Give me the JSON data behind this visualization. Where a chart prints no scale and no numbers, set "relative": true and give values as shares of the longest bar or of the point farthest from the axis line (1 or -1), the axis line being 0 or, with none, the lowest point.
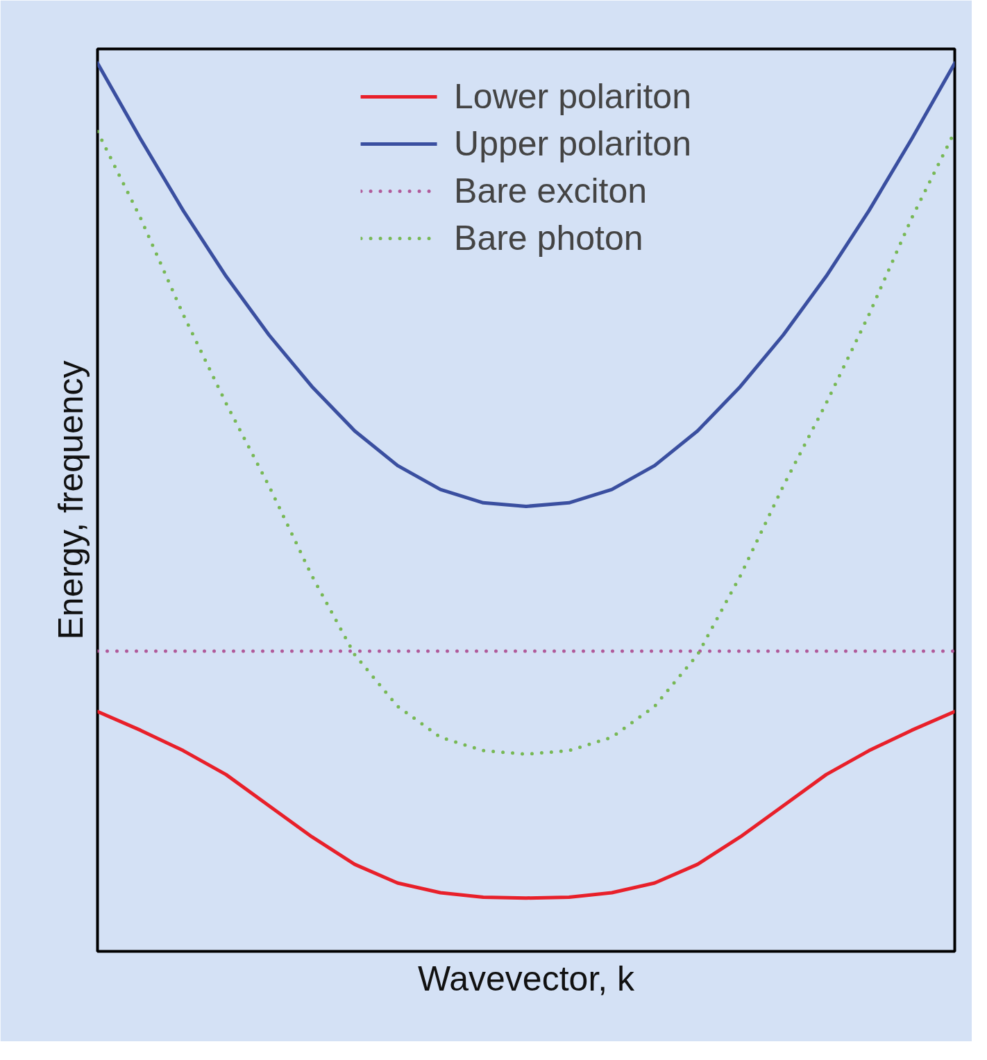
{
  "chart_data": {
    "type": "line",
    "relative": true,
    "xlabel": "Wavevector, k",
    "ylabel": "Energy, frequency",
    "legend": "top",
    "categories": [
      null,
      null,
      null,
      null,
      null,
      null,
      null,
      null,
      null,
      null,
      null,
      null,
      null,
      null,
      null,
      null,
      null,
      null,
      null,
      null,
      null
    ],
    "series": [
      {
        "name": "Lower polariton",
        "color": "#e8202a",
        "line_style": "solid",
        "values": [
          0.27,
          0.249,
          0.226,
          0.199,
          0.164,
          0.129,
          0.098,
          0.077,
          0.066,
          0.061,
          0.06,
          0.061,
          0.066,
          0.077,
          0.098,
          0.129,
          0.164,
          0.199,
          0.226,
          0.249,
          0.27
        ]
      },
      {
        "name": "Upper polariton",
        "color": "#3a4fa0",
        "line_style": "solid",
        "values": [
          1.0,
          0.915,
          0.834,
          0.76,
          0.694,
          0.636,
          0.586,
          0.547,
          0.52,
          0.505,
          0.501,
          0.505,
          0.52,
          0.547,
          0.586,
          0.636,
          0.694,
          0.76,
          0.834,
          0.915,
          1.0
        ]
      },
      {
        "name": "Bare exciton",
        "color": "#b05a9a",
        "line_style": "dotted",
        "values": [
          0.338,
          0.338,
          0.338,
          0.338,
          0.338,
          0.338,
          0.338,
          0.338,
          0.338,
          0.338,
          0.338,
          0.338,
          0.338,
          0.338,
          0.338,
          0.338,
          0.338,
          0.338,
          0.338,
          0.338,
          0.338
        ]
      },
      {
        "name": "Bare photon",
        "color": "#77b855",
        "line_style": "dotted",
        "values": [
          0.923,
          0.826,
          0.717,
          0.617,
          0.524,
          0.423,
          0.334,
          0.276,
          0.241,
          0.226,
          0.222,
          0.226,
          0.241,
          0.276,
          0.334,
          0.423,
          0.524,
          0.617,
          0.717,
          0.826,
          0.923
        ]
      }
    ]
  }
}
